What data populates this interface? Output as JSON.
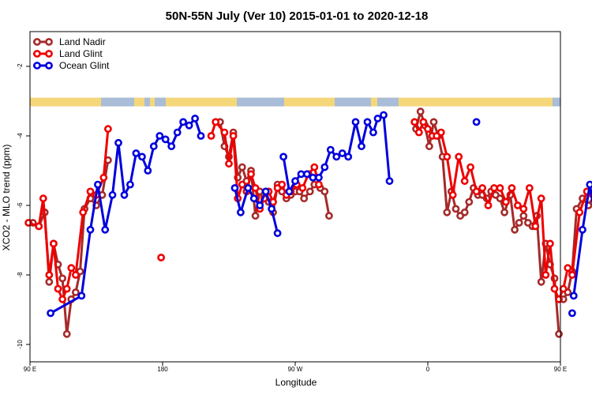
{
  "chart_data": {
    "type": "line",
    "title": "50N-55N July (Ver 10)   2015-01-01 to 2020-12-18",
    "xlabel": "Longitude",
    "ylabel": "XCO2 - MLO trend (ppm)",
    "xlim": [
      90,
      450
    ],
    "ylim": [
      -10.5,
      -1.0
    ],
    "x_ticks": [
      {
        "value": 90,
        "label": "90 E"
      },
      {
        "value": 180,
        "label": "180"
      },
      {
        "value": 270,
        "label": "90 W"
      },
      {
        "value": 360,
        "label": "0"
      },
      {
        "value": 450,
        "label": "90 E"
      },
      {
        "value": 540,
        "label": "180"
      }
    ],
    "y_ticks": [
      {
        "value": -2,
        "label": "-2"
      },
      {
        "value": -4,
        "label": "-4"
      },
      {
        "value": -6,
        "label": "-6"
      },
      {
        "value": -8,
        "label": "-8"
      },
      {
        "value": -10,
        "label": "-10"
      }
    ],
    "legend_position": "top-left",
    "grid": false,
    "land_sea_strip": {
      "y_range": [
        -3.15,
        -2.9
      ],
      "land_color": "#f5d77a",
      "ocean_color": "#a9bdd8"
    },
    "series": [
      {
        "name": "Land Nadir",
        "color": "#a52a2a",
        "segments": [
          [
            [
              92,
              -6.5
            ],
            [
              96,
              -6.6
            ],
            [
              100,
              -6.2
            ],
            [
              103,
              -8.2
            ],
            [
              106,
              -7.1
            ],
            [
              109,
              -7.7
            ],
            [
              112,
              -8.1
            ],
            [
              115,
              -9.7
            ],
            [
              118,
              -8.7
            ],
            [
              121,
              -8.5
            ],
            [
              124,
              -7.9
            ],
            [
              127,
              -6.1
            ],
            [
              131,
              -5.8
            ],
            [
              135,
              -6.0
            ],
            [
              139,
              -5.7
            ],
            [
              143,
              -4.7
            ]
          ],
          [
            [
              219,
              -3.6
            ],
            [
              222,
              -4.3
            ],
            [
              225,
              -4.6
            ],
            [
              228,
              -3.9
            ],
            [
              231,
              -5.2
            ],
            [
              234,
              -4.9
            ],
            [
              237,
              -5.3
            ],
            [
              240,
              -5.0
            ],
            [
              243,
              -6.3
            ],
            [
              246,
              -5.6
            ],
            [
              249,
              -5.7
            ],
            [
              252,
              -5.9
            ],
            [
              255,
              -6.2
            ],
            [
              258,
              -5.4
            ],
            [
              261,
              -5.6
            ],
            [
              264,
              -5.8
            ],
            [
              267,
              -5.7
            ],
            [
              270,
              -5.6
            ],
            [
              273,
              -5.6
            ],
            [
              276,
              -5.8
            ],
            [
              280,
              -5.6
            ],
            [
              283,
              -5.4
            ],
            [
              287,
              -5.5
            ],
            [
              290,
              -5.6
            ],
            [
              293,
              -6.3
            ]
          ],
          [
            [
              352,
              -3.8
            ],
            [
              355,
              -3.3
            ],
            [
              358,
              -3.7
            ],
            [
              361,
              -4.3
            ],
            [
              364,
              -3.6
            ],
            [
              367,
              -4.0
            ],
            [
              370,
              -4.6
            ],
            [
              373,
              -6.2
            ],
            [
              376,
              -5.6
            ],
            [
              379,
              -6.1
            ],
            [
              382,
              -6.3
            ],
            [
              385,
              -6.2
            ],
            [
              388,
              -5.9
            ],
            [
              391,
              -5.5
            ],
            [
              394,
              -5.7
            ],
            [
              397,
              -5.7
            ],
            [
              400,
              -5.8
            ],
            [
              403,
              -5.6
            ],
            [
              406,
              -5.7
            ],
            [
              409,
              -5.8
            ],
            [
              412,
              -6.2
            ],
            [
              416,
              -5.7
            ],
            [
              419,
              -6.7
            ],
            [
              422,
              -6.5
            ],
            [
              425,
              -6.3
            ],
            [
              428,
              -6.5
            ],
            [
              431,
              -6.6
            ],
            [
              434,
              -6.3
            ],
            [
              437,
              -8.2
            ],
            [
              440,
              -7.1
            ],
            [
              443,
              -7.7
            ],
            [
              446,
              -8.1
            ],
            [
              449,
              -9.7
            ]
          ],
          [
            [
              452,
              -8.7
            ],
            [
              455,
              -8.5
            ],
            [
              458,
              -7.9
            ],
            [
              461,
              -6.1
            ],
            [
              465,
              -5.8
            ],
            [
              469,
              -6.0
            ],
            [
              473,
              -5.7
            ],
            [
              477,
              -4.7
            ]
          ]
        ]
      },
      {
        "name": "Land Glint",
        "color": "#ee0000",
        "segments": [
          [
            [
              89,
              -6.5
            ],
            [
              96,
              -6.6
            ],
            [
              99,
              -5.8
            ],
            [
              103,
              -8.0
            ],
            [
              106,
              -7.1
            ],
            [
              109,
              -8.4
            ],
            [
              112,
              -8.7
            ],
            [
              115,
              -8.4
            ],
            [
              118,
              -7.8
            ],
            [
              121,
              -8.0
            ],
            [
              126,
              -6.2
            ],
            [
              131,
              -5.6
            ],
            [
              135,
              -5.7
            ],
            [
              140,
              -5.2
            ],
            [
              143,
              -3.8
            ]
          ],
          [
            [
              179,
              -7.5
            ]
          ],
          [
            [
              213,
              -4.0
            ],
            [
              216,
              -3.6
            ],
            [
              222,
              -3.9
            ],
            [
              225,
              -4.8
            ],
            [
              228,
              -4.0
            ],
            [
              231,
              -5.8
            ],
            [
              234,
              -5.4
            ],
            [
              237,
              -5.6
            ],
            [
              240,
              -5.1
            ],
            [
              243,
              -5.5
            ],
            [
              246,
              -6.1
            ],
            [
              249,
              -5.8
            ],
            [
              252,
              -5.6
            ],
            [
              255,
              -5.9
            ],
            [
              258,
              -5.5
            ],
            [
              261,
              -5.4
            ],
            [
              264,
              -5.7
            ],
            [
              267,
              -5.6
            ],
            [
              271,
              -5.4
            ],
            [
              275,
              -5.5
            ],
            [
              279,
              -5.1
            ],
            [
              283,
              -4.9
            ],
            [
              286,
              -5.4
            ]
          ],
          [
            [
              351,
              -3.6
            ],
            [
              354,
              -3.9
            ],
            [
              357,
              -3.6
            ],
            [
              360,
              -3.8
            ],
            [
              363,
              -4.0
            ],
            [
              366,
              -4.0
            ],
            [
              369,
              -3.9
            ],
            [
              373,
              -4.6
            ],
            [
              377,
              -5.7
            ],
            [
              381,
              -4.6
            ],
            [
              385,
              -5.3
            ],
            [
              389,
              -4.9
            ],
            [
              393,
              -5.6
            ],
            [
              397,
              -5.5
            ],
            [
              401,
              -6.0
            ],
            [
              405,
              -5.5
            ],
            [
              409,
              -5.5
            ],
            [
              413,
              -5.9
            ],
            [
              417,
              -5.5
            ],
            [
              421,
              -6.0
            ],
            [
              425,
              -6.1
            ],
            [
              429,
              -5.5
            ],
            [
              433,
              -6.6
            ],
            [
              437,
              -5.8
            ],
            [
              440,
              -8.0
            ],
            [
              443,
              -7.1
            ],
            [
              446,
              -8.4
            ],
            [
              449,
              -8.7
            ],
            [
              452,
              -8.4
            ],
            [
              455,
              -7.8
            ],
            [
              458,
              -8.0
            ],
            [
              463,
              -6.2
            ],
            [
              468,
              -5.6
            ],
            [
              472,
              -5.7
            ],
            [
              475,
              -5.2
            ],
            [
              478,
              -3.8
            ]
          ]
        ]
      },
      {
        "name": "Ocean Glint",
        "color": "#0000dd",
        "segments": [
          [
            [
              104,
              -9.1
            ],
            [
              125,
              -8.6
            ],
            [
              131,
              -6.7
            ],
            [
              136,
              -5.4
            ],
            [
              141,
              -6.7
            ],
            [
              146,
              -5.7
            ],
            [
              150,
              -4.2
            ],
            [
              154,
              -5.7
            ],
            [
              158,
              -5.4
            ],
            [
              162,
              -4.5
            ],
            [
              166,
              -4.6
            ],
            [
              170,
              -5.0
            ],
            [
              174,
              -4.3
            ],
            [
              178,
              -4.0
            ],
            [
              182,
              -4.1
            ],
            [
              186,
              -4.3
            ],
            [
              190,
              -3.9
            ],
            [
              194,
              -3.6
            ],
            [
              198,
              -3.7
            ],
            [
              202,
              -3.5
            ],
            [
              206,
              -4.0
            ]
          ],
          [
            [
              229,
              -5.5
            ],
            [
              233,
              -6.2
            ],
            [
              238,
              -5.5
            ],
            [
              242,
              -5.8
            ],
            [
              246,
              -6.0
            ],
            [
              250,
              -5.6
            ],
            [
              254,
              -6.1
            ],
            [
              258,
              -6.8
            ]
          ],
          [
            [
              262,
              -4.6
            ],
            [
              266,
              -5.6
            ],
            [
              270,
              -5.3
            ],
            [
              274,
              -5.1
            ],
            [
              278,
              -5.1
            ],
            [
              282,
              -5.2
            ],
            [
              286,
              -5.2
            ],
            [
              290,
              -4.9
            ],
            [
              294,
              -4.4
            ],
            [
              298,
              -4.6
            ],
            [
              302,
              -4.5
            ],
            [
              306,
              -4.6
            ],
            [
              311,
              -3.6
            ],
            [
              315,
              -4.3
            ],
            [
              319,
              -3.6
            ],
            [
              323,
              -3.9
            ],
            [
              326,
              -3.5
            ],
            [
              330,
              -3.4
            ],
            [
              334,
              -5.3
            ]
          ],
          [
            [
              393,
              -3.6
            ]
          ],
          [
            [
              458,
              -9.1
            ]
          ],
          [
            [
              459,
              -8.6
            ],
            [
              465,
              -6.7
            ],
            [
              470,
              -5.4
            ],
            [
              475,
              -6.7
            ],
            [
              480,
              -5.7
            ],
            [
              485,
              -4.2
            ],
            [
              489,
              -5.7
            ],
            [
              493,
              -5.4
            ],
            [
              497,
              -4.5
            ]
          ]
        ]
      }
    ]
  }
}
